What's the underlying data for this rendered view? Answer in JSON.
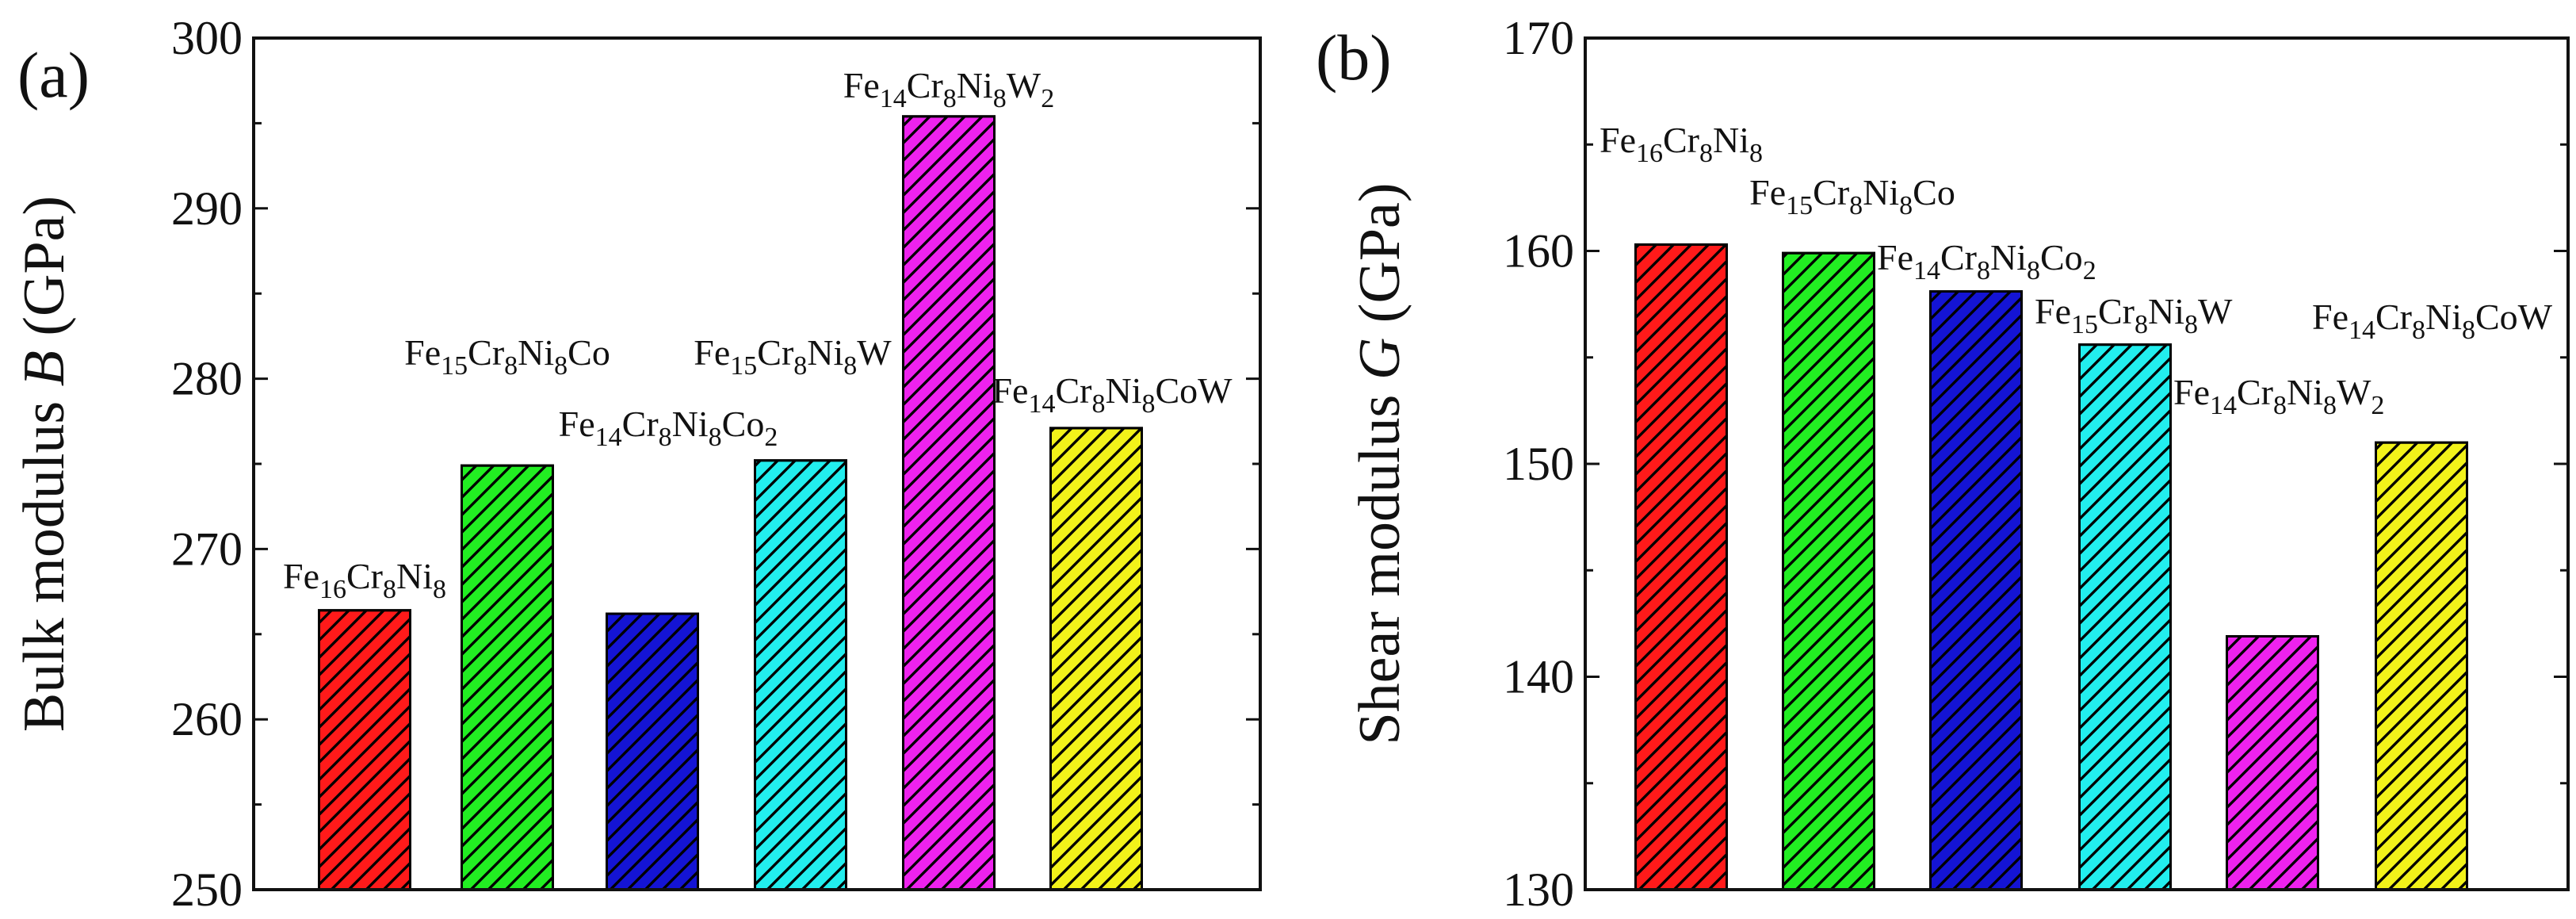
{
  "figure": {
    "panels": [
      "(a)",
      "(b)"
    ]
  },
  "colors": {
    "red": "#ff1a1a",
    "green": "#22ee22",
    "blue": "#1414d4",
    "cyan": "#22eeee",
    "magenta": "#ee22ee",
    "yellow": "#f2f21a",
    "axis": "#111111",
    "hatch": "#000000"
  },
  "chart_data": [
    {
      "type": "bar",
      "panel_label": "(a)",
      "title": "",
      "xlabel": "",
      "ylabel_prefix": "Bulk modulus ",
      "ylabel_symbol": "B",
      "ylabel_suffix": " (GPa)",
      "ylim": [
        250,
        300
      ],
      "yticks": [
        250,
        260,
        270,
        280,
        290,
        300
      ],
      "categories": [
        {
          "label": [
            [
              "Fe",
              ""
            ],
            [
              "16",
              "sub"
            ],
            [
              "Cr",
              ""
            ],
            [
              "8",
              "sub"
            ],
            [
              "Ni",
              ""
            ],
            [
              "8",
              "sub"
            ]
          ],
          "value": 266.4,
          "color": "red",
          "label_anchor": "middle",
          "label_offset_bar": 0
        },
        {
          "label": [
            [
              "Fe",
              ""
            ],
            [
              "15",
              "sub"
            ],
            [
              "Cr",
              ""
            ],
            [
              "8",
              "sub"
            ],
            [
              "Ni",
              ""
            ],
            [
              "8",
              "sub"
            ],
            [
              "Co",
              ""
            ]
          ],
          "value": 274.9,
          "color": "green",
          "label_anchor": "middle",
          "label_offset_bar": 0
        },
        {
          "label": [
            [
              "Fe",
              ""
            ],
            [
              "14",
              "sub"
            ],
            [
              "Cr",
              ""
            ],
            [
              "8",
              "sub"
            ],
            [
              "Ni",
              ""
            ],
            [
              "8",
              "sub"
            ],
            [
              "Co",
              ""
            ],
            [
              "2",
              "sub"
            ]
          ],
          "value": 266.2,
          "color": "blue",
          "label_anchor": "middle",
          "label_offset_bar": 0
        },
        {
          "label": [
            [
              "Fe",
              ""
            ],
            [
              "15",
              "sub"
            ],
            [
              "Cr",
              ""
            ],
            [
              "8",
              "sub"
            ],
            [
              "Ni",
              ""
            ],
            [
              "8",
              "sub"
            ],
            [
              "W",
              ""
            ]
          ],
          "value": 275.2,
          "color": "cyan",
          "label_anchor": "middle",
          "label_offset_bar": 0
        },
        {
          "label": [
            [
              "Fe",
              ""
            ],
            [
              "14",
              "sub"
            ],
            [
              "Cr",
              ""
            ],
            [
              "8",
              "sub"
            ],
            [
              "Ni",
              ""
            ],
            [
              "8",
              "sub"
            ],
            [
              "W",
              ""
            ],
            [
              "2",
              "sub"
            ]
          ],
          "value": 295.4,
          "color": "magenta",
          "label_anchor": "middle",
          "label_offset_bar": 0
        },
        {
          "label": [
            [
              "Fe",
              ""
            ],
            [
              "14",
              "sub"
            ],
            [
              "Cr",
              ""
            ],
            [
              "8",
              "sub"
            ],
            [
              "Ni",
              ""
            ],
            [
              "8",
              "sub"
            ],
            [
              "CoW",
              ""
            ]
          ],
          "value": 277.1,
          "color": "yellow",
          "label_anchor": "middle",
          "label_offset_bar": 0
        }
      ]
    },
    {
      "type": "bar",
      "panel_label": "(b)",
      "title": "",
      "xlabel": "",
      "ylabel_prefix": "Shear modulus ",
      "ylabel_symbol": "G",
      "ylabel_suffix": " (GPa)",
      "ylim": [
        130,
        170
      ],
      "yticks": [
        130,
        140,
        150,
        160,
        170
      ],
      "categories": [
        {
          "label": [
            [
              "Fe",
              ""
            ],
            [
              "16",
              "sub"
            ],
            [
              "Cr",
              ""
            ],
            [
              "8",
              "sub"
            ],
            [
              "Ni",
              ""
            ],
            [
              "8",
              "sub"
            ]
          ],
          "value": 160.3,
          "color": "red"
        },
        {
          "label": [
            [
              "Fe",
              ""
            ],
            [
              "15",
              "sub"
            ],
            [
              "Cr",
              ""
            ],
            [
              "8",
              "sub"
            ],
            [
              "Ni",
              ""
            ],
            [
              "8",
              "sub"
            ],
            [
              "Co",
              ""
            ]
          ],
          "value": 159.9,
          "color": "green"
        },
        {
          "label": [
            [
              "Fe",
              ""
            ],
            [
              "14",
              "sub"
            ],
            [
              "Cr",
              ""
            ],
            [
              "8",
              "sub"
            ],
            [
              "Ni",
              ""
            ],
            [
              "8",
              "sub"
            ],
            [
              "Co",
              ""
            ],
            [
              "2",
              "sub"
            ]
          ],
          "value": 158.1,
          "color": "blue"
        },
        {
          "label": [
            [
              "Fe",
              ""
            ],
            [
              "15",
              "sub"
            ],
            [
              "Cr",
              ""
            ],
            [
              "8",
              "sub"
            ],
            [
              "Ni",
              ""
            ],
            [
              "8",
              "sub"
            ],
            [
              "W",
              ""
            ]
          ],
          "value": 155.6,
          "color": "cyan"
        },
        {
          "label": [
            [
              "Fe",
              ""
            ],
            [
              "14",
              "sub"
            ],
            [
              "Cr",
              ""
            ],
            [
              "8",
              "sub"
            ],
            [
              "Ni",
              ""
            ],
            [
              "8",
              "sub"
            ],
            [
              "W",
              ""
            ],
            [
              "2",
              "sub"
            ]
          ],
          "value": 141.9,
          "color": "magenta"
        },
        {
          "label": [
            [
              "Fe",
              ""
            ],
            [
              "14",
              "sub"
            ],
            [
              "Cr",
              ""
            ],
            [
              "8",
              "sub"
            ],
            [
              "Ni",
              ""
            ],
            [
              "8",
              "sub"
            ],
            [
              "CoW",
              ""
            ]
          ],
          "value": 151.0,
          "color": "yellow"
        }
      ]
    }
  ]
}
